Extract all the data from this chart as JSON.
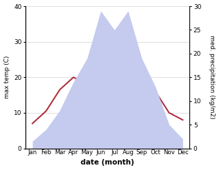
{
  "months": [
    "Jan",
    "Feb",
    "Mar",
    "Apr",
    "May",
    "Jun",
    "Jul",
    "Aug",
    "Sep",
    "Oct",
    "Nov",
    "Dec"
  ],
  "x": [
    0,
    1,
    2,
    3,
    4,
    5,
    6,
    7,
    8,
    9,
    10,
    11
  ],
  "temperature": [
    7,
    10.5,
    16.5,
    20,
    18,
    24,
    26,
    27,
    24,
    16,
    10,
    8
  ],
  "precipitation": [
    1.5,
    4,
    8,
    14,
    19,
    29,
    25,
    29,
    19,
    13,
    5,
    2
  ],
  "temp_color": "#b03040",
  "precip_fill_color": "#c5cbee",
  "left_ylabel": "max temp (C)",
  "right_ylabel": "med. precipitation (kg/m2)",
  "xlabel": "date (month)",
  "ylim_left": [
    0,
    40
  ],
  "ylim_right": [
    0,
    30
  ],
  "yticks_left": [
    0,
    10,
    20,
    30,
    40
  ],
  "yticks_right": [
    0,
    5,
    10,
    15,
    20,
    25,
    30
  ],
  "background_color": "#ffffff",
  "grid_color": "#d0d0d0"
}
